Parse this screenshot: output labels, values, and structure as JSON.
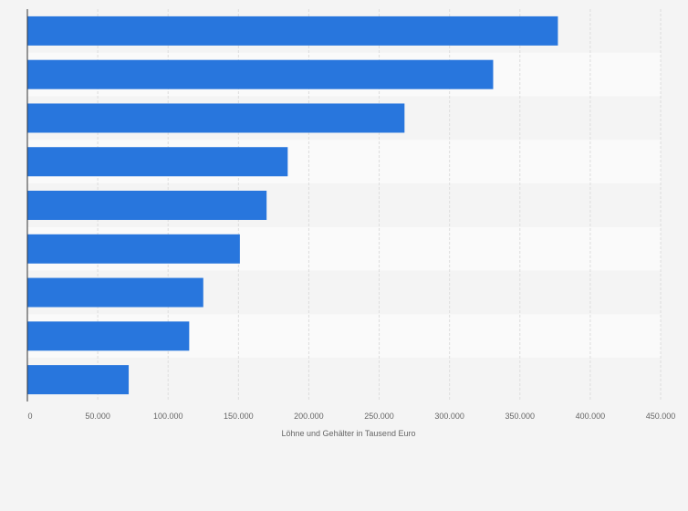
{
  "chart_data": {
    "type": "bar",
    "orientation": "horizontal",
    "categories": [
      "",
      "",
      "",
      "",
      "",
      "",
      "",
      "",
      ""
    ],
    "values": [
      377000,
      331000,
      268000,
      185000,
      170000,
      151000,
      125000,
      115000,
      72000
    ],
    "xlabel": "Löhne und Gehälter in Tausend Euro",
    "ylabel": "",
    "xlim": [
      0,
      450000
    ],
    "xticks": [
      "0",
      "50.000",
      "100.000",
      "150.000",
      "200.000",
      "250.000",
      "300.000",
      "350.000",
      "400.000",
      "450.000"
    ],
    "tick_step": 50000,
    "grid": true,
    "bar_color": "#2876dd",
    "band_colors": [
      "#f4f4f4",
      "#fafafa"
    ],
    "grid_color": "#dddddd",
    "axis_color": "#333333"
  }
}
